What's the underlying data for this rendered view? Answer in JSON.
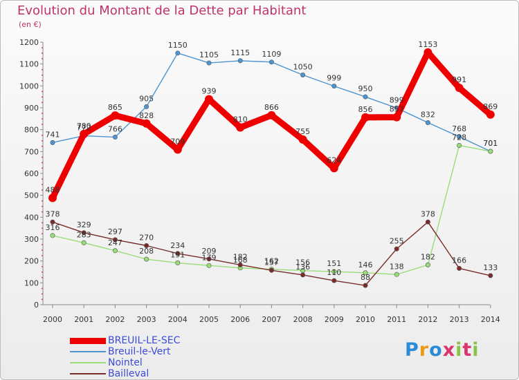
{
  "title": "Evolution du Montant de la Dette par Habitant",
  "unit": "(en €)",
  "logo": {
    "text": "Proxiti",
    "colors": [
      "#2c8bd6",
      "#e89a18",
      "#2c8bd6",
      "#d9346e",
      "#8bc34a",
      "#d9346e",
      "#8bc34a"
    ]
  },
  "chart_data": {
    "type": "line",
    "x": [
      2000,
      2001,
      2002,
      2003,
      2004,
      2005,
      2006,
      2007,
      2008,
      2009,
      2010,
      2011,
      2012,
      2013,
      2014
    ],
    "ylim": [
      0,
      1200
    ],
    "yticks": [
      0,
      100,
      200,
      300,
      400,
      500,
      600,
      700,
      800,
      900,
      1000,
      1100,
      1200
    ],
    "grid": false,
    "legend": "bottom-left",
    "series": [
      {
        "name": "BREUIL-LE-SEC",
        "color": "#ee0000",
        "values": [
          488,
          780,
          865,
          828,
          709,
          939,
          810,
          866,
          755,
          624,
          856,
          857,
          1153,
          991,
          869
        ],
        "labels": [
          "488",
          "780",
          "865",
          "828",
          "709",
          "939",
          "810",
          "866",
          "755",
          "624",
          "856",
          "857",
          "1153",
          "991",
          "869"
        ]
      },
      {
        "name": "Breuil-le-Vert",
        "color": "#4d94d0",
        "values": [
          741,
          772,
          766,
          905,
          1150,
          1105,
          1115,
          1109,
          1050,
          999,
          950,
          899,
          832,
          768,
          701
        ],
        "labels": [
          "741",
          "772",
          "766",
          "905",
          "1150",
          "1105",
          "1115",
          "1109",
          "1050",
          "999",
          "950",
          "899",
          "832",
          "768",
          "701"
        ]
      },
      {
        "name": "Nointel",
        "color": "#99dd77",
        "values": [
          316,
          283,
          247,
          208,
          191,
          179,
          168,
          162,
          156,
          151,
          146,
          138,
          182,
          728,
          701
        ],
        "labels": [
          "316",
          "283",
          "247",
          "208",
          "191",
          "179",
          "168",
          "162",
          "156",
          "151",
          "146",
          "138",
          "182",
          "728",
          "701"
        ]
      },
      {
        "name": "Bailleval",
        "color": "#7a2b2b",
        "values": [
          378,
          329,
          297,
          270,
          234,
          209,
          182,
          157,
          136,
          110,
          88,
          255,
          378,
          166,
          133
        ],
        "labels": [
          "378",
          "329",
          "297",
          "270",
          "234",
          "209",
          "182",
          "157",
          "136",
          "110",
          "88",
          "255",
          "378",
          "166",
          "133"
        ]
      }
    ]
  }
}
